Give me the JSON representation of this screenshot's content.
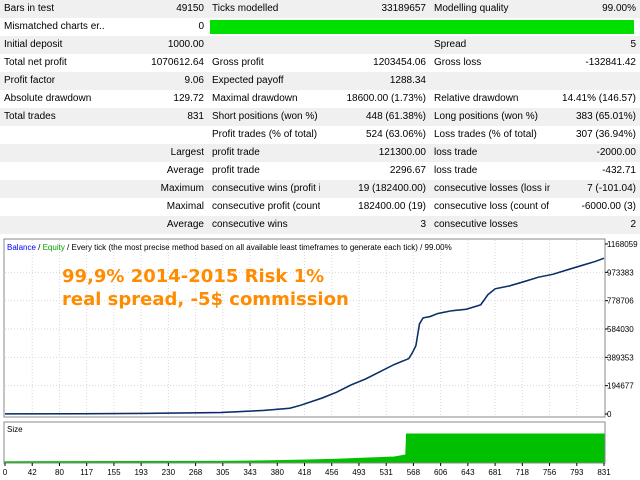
{
  "report": {
    "rows": [
      [
        "Bars in test",
        "49150",
        "Ticks modelled",
        "33189657",
        "Modelling quality",
        "99.00%"
      ],
      [
        "Mismatched charts er...",
        "0",
        "",
        "",
        "",
        ""
      ],
      [
        "Initial deposit",
        "1000.00",
        "",
        "",
        "Spread",
        "5"
      ],
      [
        "Total net profit",
        "1070612.64",
        "Gross profit",
        "1203454.06",
        "Gross loss",
        "-132841.42"
      ],
      [
        "Profit factor",
        "9.06",
        "Expected payoff",
        "1288.34",
        "",
        ""
      ],
      [
        "Absolute drawdown",
        "129.72",
        "Maximal drawdown",
        "18600.00 (1.73%)",
        "Relative drawdown",
        "14.41% (146.57)"
      ],
      [
        "Total trades",
        "831",
        "Short positions (won %)",
        "448 (61.38%)",
        "Long positions (won %)",
        "383 (65.01%)"
      ],
      [
        "",
        "",
        "Profit trades (% of total)",
        "524 (63.06%)",
        "Loss trades (% of total)",
        "307 (36.94%)"
      ],
      [
        "",
        "Largest",
        "profit trade",
        "121300.00",
        "loss trade",
        "-2000.00"
      ],
      [
        "",
        "Average",
        "profit trade",
        "2296.67",
        "loss trade",
        "-432.71"
      ],
      [
        "",
        "Maximum",
        "consecutive wins (profit in...",
        "19 (182400.00)",
        "consecutive losses (loss in ...",
        "7 (-101.04)"
      ],
      [
        "",
        "Maximal",
        "consecutive profit (count ...",
        "182400.00 (19)",
        "consecutive loss (count of ...",
        "-6000.00 (3)"
      ],
      [
        "",
        "Average",
        "consecutive wins",
        "3",
        "consecutive losses",
        "2"
      ]
    ],
    "modelling_quality_fraction": 0.99
  },
  "chart": {
    "legend": {
      "balance": "Balance",
      "sep1": " / ",
      "equity": "Equity",
      "rest": " / Every tick (the most precise method based on all available least timeframes to generate each tick) / 99.00%"
    },
    "overlay_line1": "99,9% 2014-2015 Risk 1%",
    "overlay_line2": "real spread, -5$ commission",
    "size_label": "Size",
    "colors": {
      "balance": "#000080",
      "equity": "#00a000",
      "size": "#00c000",
      "overlay": "#ff8c00",
      "legend_balance": "#0000ff",
      "legend_equity": "#00a000"
    }
  },
  "chart_data": {
    "type": "line",
    "series": [
      {
        "name": "Balance",
        "x": [
          0,
          100,
          200,
          300,
          360,
          395,
          410,
          440,
          460,
          480,
          500,
          520,
          540,
          550,
          560,
          565,
          570,
          575,
          580,
          590,
          600,
          610,
          620,
          640,
          660,
          670,
          675,
          680,
          700,
          720,
          740,
          760,
          780,
          800,
          820,
          831
        ],
        "values": [
          1000,
          1500,
          4000,
          10000,
          25000,
          40000,
          60000,
          110000,
          150000,
          200000,
          240000,
          290000,
          340000,
          360000,
          380000,
          420000,
          470000,
          620000,
          660000,
          670000,
          690000,
          700000,
          710000,
          720000,
          750000,
          820000,
          840000,
          860000,
          880000,
          910000,
          940000,
          960000,
          990000,
          1020000,
          1050000,
          1070612
        ]
      }
    ],
    "size_series": {
      "x": [
        0,
        300,
        360,
        420,
        460,
        500,
        540,
        556,
        557,
        831
      ],
      "values": [
        0.01,
        0.02,
        0.04,
        0.07,
        0.1,
        0.14,
        0.18,
        0.25,
        1.0,
        1.0
      ]
    },
    "y_ticks": [
      "1168059",
      "973383",
      "778706",
      "584030",
      "389353",
      "194677",
      "0"
    ],
    "ylim": [
      0,
      1168059
    ],
    "x_ticks": [
      "0",
      "42",
      "80",
      "117",
      "155",
      "193",
      "230",
      "268",
      "305",
      "343",
      "380",
      "418",
      "456",
      "493",
      "531",
      "568",
      "606",
      "643",
      "681",
      "718",
      "756",
      "793",
      "831"
    ],
    "xlim": [
      0,
      831
    ],
    "grid": true
  }
}
